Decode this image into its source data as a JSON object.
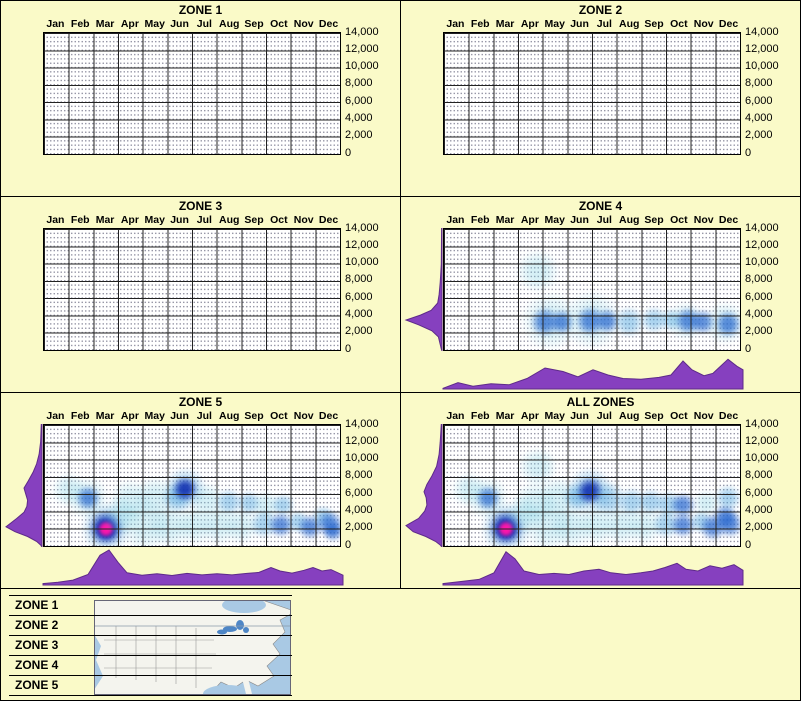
{
  "page": {
    "background": "#FAFAC8",
    "border": "#000000"
  },
  "months": [
    "Jan",
    "Feb",
    "Mar",
    "Apr",
    "May",
    "Jun",
    "Jul",
    "Aug",
    "Sep",
    "Oct",
    "Nov",
    "Dec"
  ],
  "y_axis": {
    "ticks": [
      "14,000",
      "12,000",
      "10,000",
      "8,000",
      "6,000",
      "4,000",
      "2,000",
      "0"
    ],
    "min": 0,
    "max": 14000
  },
  "panels": [
    {
      "title": "ZONE 1",
      "has_data": false
    },
    {
      "title": "ZONE 2",
      "has_data": false
    },
    {
      "title": "ZONE 3",
      "has_data": false
    },
    {
      "title": "ZONE 4",
      "has_data": true
    },
    {
      "title": "ZONE 5",
      "has_data": true
    },
    {
      "title": "ALL ZONES",
      "has_data": true
    }
  ],
  "legend": {
    "items": [
      "ZONE 1",
      "ZONE 2",
      "ZONE 3",
      "ZONE 4",
      "ZONE 5"
    ],
    "map_name": "usa-zones-map"
  },
  "colors": {
    "background": "#FAFAC8",
    "plot_bg": "#FFFFFF",
    "grid": "#222222",
    "grid_dots": "#8F8FA0",
    "density": "#8640BF",
    "density_stroke": "#5E2A8A",
    "heat": {
      "faint": "rgba(120,205,225,0.30)",
      "light": "rgba(70,160,220,0.45)",
      "mid": "rgba(35,100,205,0.70)",
      "dark": "rgba(15,45,175,0.88)",
      "hot": "#FF16AC"
    },
    "map_water": "#A9C9E4",
    "map_land": "#F4F4EE",
    "map_lakes": "#4E86C6"
  },
  "chart_data": [
    {
      "zone": "ZONE 1",
      "type": "heatmap",
      "x_unit": "month",
      "x_categories": [
        "Jan",
        "Feb",
        "Mar",
        "Apr",
        "May",
        "Jun",
        "Jul",
        "Aug",
        "Sep",
        "Oct",
        "Nov",
        "Dec"
      ],
      "y_range": [
        0,
        14000
      ],
      "no_data": true,
      "points": []
    },
    {
      "zone": "ZONE 2",
      "type": "heatmap",
      "x_unit": "month",
      "y_range": [
        0,
        14000
      ],
      "no_data": true,
      "points": []
    },
    {
      "zone": "ZONE 3",
      "type": "heatmap",
      "x_unit": "month",
      "y_range": [
        0,
        14000
      ],
      "no_data": true,
      "points": []
    },
    {
      "zone": "ZONE 4",
      "type": "heatmap",
      "x_unit": "month",
      "y_range": [
        0,
        14000
      ],
      "no_data": false,
      "points": [
        {
          "m": 4.3,
          "v": 9200,
          "s": 22,
          "c": "faint"
        },
        {
          "m": 4.8,
          "v": 3400,
          "s": 30,
          "c": "faint"
        },
        {
          "m": 4.6,
          "v": 3300,
          "s": 15,
          "c": "mid"
        },
        {
          "m": 5.3,
          "v": 3300,
          "s": 13,
          "c": "mid"
        },
        {
          "m": 6.5,
          "v": 3500,
          "s": 30,
          "c": "faint"
        },
        {
          "m": 6.4,
          "v": 3400,
          "s": 15,
          "c": "mid"
        },
        {
          "m": 7.1,
          "v": 3400,
          "s": 13,
          "c": "mid"
        },
        {
          "m": 8.0,
          "v": 3200,
          "s": 16,
          "c": "light"
        },
        {
          "m": 9.0,
          "v": 3500,
          "s": 14,
          "c": "light"
        },
        {
          "m": 9.7,
          "v": 3500,
          "s": 12,
          "c": "light"
        },
        {
          "m": 10.3,
          "v": 3400,
          "s": 20,
          "c": "faint"
        },
        {
          "m": 10.4,
          "v": 3400,
          "s": 14,
          "c": "mid"
        },
        {
          "m": 11.0,
          "v": 3300,
          "s": 13,
          "c": "mid"
        },
        {
          "m": 11.9,
          "v": 3100,
          "s": 22,
          "c": "faint"
        },
        {
          "m": 12.0,
          "v": 3000,
          "s": 14,
          "c": "mid"
        }
      ],
      "density_bottom": [
        [
          0,
          0.02
        ],
        [
          0.05,
          0.18
        ],
        [
          0.1,
          0.08
        ],
        [
          0.16,
          0.15
        ],
        [
          0.22,
          0.12
        ],
        [
          0.28,
          0.3
        ],
        [
          0.34,
          0.6
        ],
        [
          0.4,
          0.5
        ],
        [
          0.45,
          0.35
        ],
        [
          0.5,
          0.55
        ],
        [
          0.55,
          0.4
        ],
        [
          0.6,
          0.3
        ],
        [
          0.66,
          0.28
        ],
        [
          0.72,
          0.33
        ],
        [
          0.76,
          0.4
        ],
        [
          0.8,
          0.8
        ],
        [
          0.83,
          0.55
        ],
        [
          0.87,
          0.38
        ],
        [
          0.9,
          0.45
        ],
        [
          0.95,
          0.85
        ],
        [
          0.98,
          0.65
        ],
        [
          1,
          0.55
        ]
      ],
      "density_left": [
        [
          0,
          0.01
        ],
        [
          0.3,
          0.02
        ],
        [
          0.45,
          0.05
        ],
        [
          0.55,
          0.08
        ],
        [
          0.62,
          0.12
        ],
        [
          0.68,
          0.3
        ],
        [
          0.72,
          0.6
        ],
        [
          0.76,
          1.0
        ],
        [
          0.8,
          0.65
        ],
        [
          0.85,
          0.28
        ],
        [
          0.9,
          0.1
        ],
        [
          1,
          0.02
        ]
      ]
    },
    {
      "zone": "ZONE 5",
      "type": "heatmap",
      "x_unit": "month",
      "y_range": [
        0,
        14000
      ],
      "no_data": false,
      "points": [
        {
          "m": 1.5,
          "v": 6500,
          "s": 18,
          "c": "faint"
        },
        {
          "m": 2.3,
          "v": 5600,
          "s": 22,
          "c": "faint"
        },
        {
          "m": 2.3,
          "v": 5600,
          "s": 13,
          "c": "mid"
        },
        {
          "m": 3.0,
          "v": 2100,
          "s": 26,
          "c": "light"
        },
        {
          "m": 3.0,
          "v": 2100,
          "s": 18,
          "c": "dark"
        },
        {
          "m": 3.0,
          "v": 2000,
          "s": 11,
          "c": "hot"
        },
        {
          "m": 3.6,
          "v": 3500,
          "s": 20,
          "c": "faint"
        },
        {
          "m": 4.0,
          "v": 5200,
          "s": 22,
          "c": "faint"
        },
        {
          "m": 5.0,
          "v": 5600,
          "s": 22,
          "c": "faint"
        },
        {
          "m": 5.9,
          "v": 5600,
          "s": 16,
          "c": "light"
        },
        {
          "m": 6.2,
          "v": 6600,
          "s": 22,
          "c": "light"
        },
        {
          "m": 6.2,
          "v": 6600,
          "s": 13,
          "c": "dark"
        },
        {
          "m": 7.1,
          "v": 5300,
          "s": 18,
          "c": "faint"
        },
        {
          "m": 8.0,
          "v": 5100,
          "s": 14,
          "c": "light"
        },
        {
          "m": 8.8,
          "v": 5000,
          "s": 13,
          "c": "light"
        },
        {
          "m": 9.5,
          "v": 4800,
          "s": 15,
          "c": "faint"
        },
        {
          "m": 10.2,
          "v": 4700,
          "s": 12,
          "c": "light"
        },
        {
          "m": 4.6,
          "v": 2400,
          "s": 26,
          "c": "faint"
        },
        {
          "m": 5.6,
          "v": 2300,
          "s": 22,
          "c": "faint"
        },
        {
          "m": 6.6,
          "v": 2400,
          "s": 20,
          "c": "faint"
        },
        {
          "m": 7.6,
          "v": 2400,
          "s": 20,
          "c": "faint"
        },
        {
          "m": 8.5,
          "v": 2300,
          "s": 18,
          "c": "faint"
        },
        {
          "m": 9.4,
          "v": 2500,
          "s": 15,
          "c": "light"
        },
        {
          "m": 10.1,
          "v": 2400,
          "s": 13,
          "c": "mid"
        },
        {
          "m": 10.8,
          "v": 2800,
          "s": 12,
          "c": "light"
        },
        {
          "m": 11.3,
          "v": 2200,
          "s": 13,
          "c": "mid"
        },
        {
          "m": 11.8,
          "v": 3400,
          "s": 12,
          "c": "light"
        },
        {
          "m": 12.1,
          "v": 2500,
          "s": 14,
          "c": "mid"
        },
        {
          "m": 12.2,
          "v": 1700,
          "s": 11,
          "c": "mid"
        }
      ],
      "density_bottom": [
        [
          0,
          0.04
        ],
        [
          0.05,
          0.08
        ],
        [
          0.1,
          0.14
        ],
        [
          0.15,
          0.3
        ],
        [
          0.19,
          0.85
        ],
        [
          0.22,
          1.0
        ],
        [
          0.25,
          0.65
        ],
        [
          0.28,
          0.35
        ],
        [
          0.33,
          0.28
        ],
        [
          0.38,
          0.32
        ],
        [
          0.43,
          0.27
        ],
        [
          0.48,
          0.33
        ],
        [
          0.53,
          0.29
        ],
        [
          0.58,
          0.32
        ],
        [
          0.63,
          0.29
        ],
        [
          0.68,
          0.33
        ],
        [
          0.72,
          0.36
        ],
        [
          0.76,
          0.5
        ],
        [
          0.79,
          0.4
        ],
        [
          0.83,
          0.34
        ],
        [
          0.87,
          0.42
        ],
        [
          0.9,
          0.5
        ],
        [
          0.93,
          0.4
        ],
        [
          0.96,
          0.44
        ],
        [
          1,
          0.28
        ]
      ],
      "density_left": [
        [
          0,
          0.02
        ],
        [
          0.15,
          0.04
        ],
        [
          0.25,
          0.08
        ],
        [
          0.33,
          0.15
        ],
        [
          0.4,
          0.25
        ],
        [
          0.47,
          0.38
        ],
        [
          0.53,
          0.5
        ],
        [
          0.58,
          0.45
        ],
        [
          0.63,
          0.4
        ],
        [
          0.68,
          0.42
        ],
        [
          0.73,
          0.5
        ],
        [
          0.78,
          0.7
        ],
        [
          0.85,
          1.0
        ],
        [
          0.89,
          0.75
        ],
        [
          0.93,
          0.4
        ],
        [
          0.97,
          0.15
        ],
        [
          1,
          0.04
        ]
      ]
    },
    {
      "zone": "ALL ZONES",
      "type": "heatmap",
      "x_unit": "month",
      "y_range": [
        0,
        14000
      ],
      "no_data": false,
      "points": [
        {
          "m": 1.5,
          "v": 6500,
          "s": 18,
          "c": "faint"
        },
        {
          "m": 2.3,
          "v": 5600,
          "s": 22,
          "c": "faint"
        },
        {
          "m": 2.3,
          "v": 5600,
          "s": 13,
          "c": "mid"
        },
        {
          "m": 3.0,
          "v": 2100,
          "s": 26,
          "c": "light"
        },
        {
          "m": 3.0,
          "v": 2100,
          "s": 18,
          "c": "dark"
        },
        {
          "m": 3.0,
          "v": 2000,
          "s": 11,
          "c": "hot"
        },
        {
          "m": 4.3,
          "v": 9200,
          "s": 20,
          "c": "faint"
        },
        {
          "m": 3.7,
          "v": 3600,
          "s": 20,
          "c": "faint"
        },
        {
          "m": 4.2,
          "v": 5000,
          "s": 22,
          "c": "faint"
        },
        {
          "m": 5.1,
          "v": 5600,
          "s": 22,
          "c": "faint"
        },
        {
          "m": 5.9,
          "v": 5700,
          "s": 15,
          "c": "light"
        },
        {
          "m": 6.4,
          "v": 6400,
          "s": 24,
          "c": "light"
        },
        {
          "m": 6.4,
          "v": 6400,
          "s": 14,
          "c": "dark"
        },
        {
          "m": 7.2,
          "v": 5400,
          "s": 18,
          "c": "light"
        },
        {
          "m": 8.1,
          "v": 5100,
          "s": 15,
          "c": "light"
        },
        {
          "m": 8.9,
          "v": 5100,
          "s": 14,
          "c": "light"
        },
        {
          "m": 9.6,
          "v": 4900,
          "s": 14,
          "c": "light"
        },
        {
          "m": 10.2,
          "v": 4800,
          "s": 13,
          "c": "mid"
        },
        {
          "m": 11.1,
          "v": 5000,
          "s": 14,
          "c": "faint"
        },
        {
          "m": 12.0,
          "v": 5600,
          "s": 14,
          "c": "light"
        },
        {
          "m": 4.7,
          "v": 2400,
          "s": 26,
          "c": "faint"
        },
        {
          "m": 5.7,
          "v": 2300,
          "s": 22,
          "c": "faint"
        },
        {
          "m": 6.7,
          "v": 2400,
          "s": 20,
          "c": "faint"
        },
        {
          "m": 7.7,
          "v": 2400,
          "s": 20,
          "c": "faint"
        },
        {
          "m": 8.6,
          "v": 2300,
          "s": 18,
          "c": "faint"
        },
        {
          "m": 9.5,
          "v": 2500,
          "s": 15,
          "c": "light"
        },
        {
          "m": 10.2,
          "v": 2400,
          "s": 13,
          "c": "mid"
        },
        {
          "m": 10.9,
          "v": 2800,
          "s": 12,
          "c": "light"
        },
        {
          "m": 11.4,
          "v": 2200,
          "s": 14,
          "c": "mid"
        },
        {
          "m": 11.9,
          "v": 3400,
          "s": 13,
          "c": "mid"
        },
        {
          "m": 12.1,
          "v": 2500,
          "s": 14,
          "c": "mid"
        }
      ],
      "density_bottom": [
        [
          0,
          0.04
        ],
        [
          0.06,
          0.1
        ],
        [
          0.12,
          0.16
        ],
        [
          0.17,
          0.35
        ],
        [
          0.21,
          0.95
        ],
        [
          0.24,
          0.75
        ],
        [
          0.27,
          0.4
        ],
        [
          0.32,
          0.3
        ],
        [
          0.37,
          0.33
        ],
        [
          0.42,
          0.3
        ],
        [
          0.47,
          0.4
        ],
        [
          0.52,
          0.45
        ],
        [
          0.56,
          0.35
        ],
        [
          0.61,
          0.3
        ],
        [
          0.66,
          0.35
        ],
        [
          0.7,
          0.4
        ],
        [
          0.74,
          0.5
        ],
        [
          0.78,
          0.62
        ],
        [
          0.81,
          0.45
        ],
        [
          0.85,
          0.4
        ],
        [
          0.89,
          0.55
        ],
        [
          0.93,
          0.48
        ],
        [
          0.97,
          0.58
        ],
        [
          1,
          0.42
        ]
      ],
      "density_left": [
        [
          0,
          0.02
        ],
        [
          0.15,
          0.05
        ],
        [
          0.25,
          0.08
        ],
        [
          0.35,
          0.15
        ],
        [
          0.43,
          0.28
        ],
        [
          0.5,
          0.42
        ],
        [
          0.56,
          0.5
        ],
        [
          0.61,
          0.44
        ],
        [
          0.67,
          0.42
        ],
        [
          0.72,
          0.48
        ],
        [
          0.78,
          0.65
        ],
        [
          0.84,
          1.0
        ],
        [
          0.89,
          0.8
        ],
        [
          0.93,
          0.45
        ],
        [
          0.97,
          0.18
        ],
        [
          1,
          0.05
        ]
      ]
    }
  ]
}
